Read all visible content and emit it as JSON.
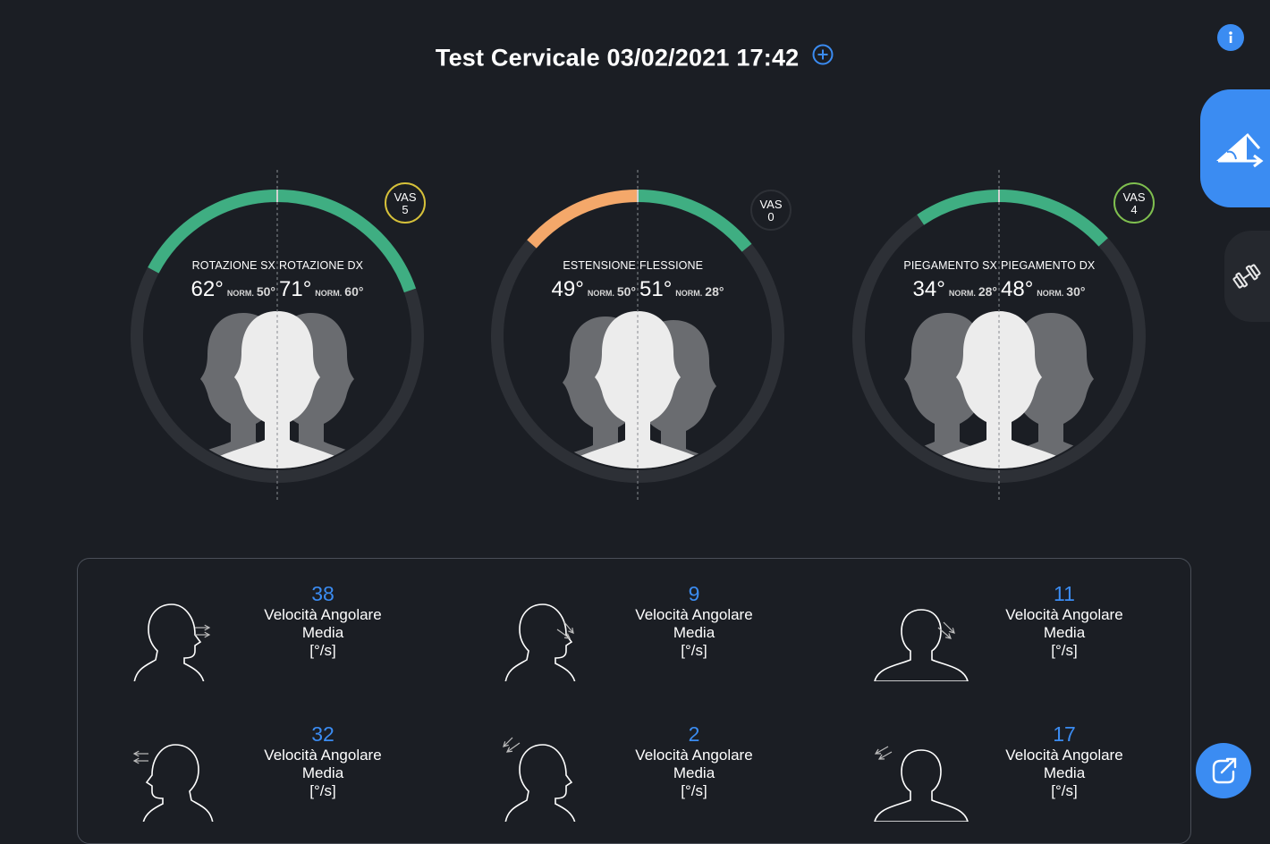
{
  "header": {
    "title": "Test Cervicale 03/02/2021 17:42"
  },
  "colors": {
    "accent": "#3b8cf2",
    "good": "#3fae82",
    "warn": "#f4a86a",
    "track": "#2d3036",
    "background": "#1b1e24"
  },
  "gauges": [
    {
      "left_label": "ROTAZIONE SX",
      "right_label": "ROTAZIONE DX",
      "left_value": "62°",
      "left_norm_key": "NORM.",
      "left_norm": "50°",
      "right_value": "71°",
      "right_norm_key": "NORM.",
      "right_norm": "60°",
      "vas_label": "VAS",
      "vas_value": "5",
      "vas_color": "#d6c13a",
      "left_color": "#3fae82",
      "right_color": "#3fae82",
      "left_deg": 62,
      "right_deg": 71
    },
    {
      "left_label": "ESTENSIONE",
      "right_label": "FLESSIONE",
      "left_value": "49°",
      "left_norm_key": "NORM.",
      "left_norm": "50°",
      "right_value": "51°",
      "right_norm_key": "NORM.",
      "right_norm": "28°",
      "vas_label": "VAS",
      "vas_value": "0",
      "vas_color": "#2d3036",
      "left_color": "#f4a86a",
      "right_color": "#3fae82",
      "left_deg": 49,
      "right_deg": 51
    },
    {
      "left_label": "PIEGAMENTO SX",
      "right_label": "PIEGAMENTO DX",
      "left_value": "34°",
      "left_norm_key": "NORM.",
      "left_norm": "28°",
      "right_value": "48°",
      "right_norm_key": "NORM.",
      "right_norm": "30°",
      "vas_label": "VAS",
      "vas_value": "4",
      "vas_color": "#7fbf4f",
      "left_color": "#3fae82",
      "right_color": "#3fae82",
      "left_deg": 34,
      "right_deg": 48
    }
  ],
  "metrics": [
    {
      "value": "38",
      "line1": "Velocità Angolare",
      "line2": "Media",
      "unit": "[°/s]",
      "icon": "head-rotation-right-icon"
    },
    {
      "value": "9",
      "line1": "Velocità Angolare",
      "line2": "Media",
      "unit": "[°/s]",
      "icon": "head-flexion-icon"
    },
    {
      "value": "11",
      "line1": "Velocità Angolare",
      "line2": "Media",
      "unit": "[°/s]",
      "icon": "head-bend-right-icon"
    },
    {
      "value": "32",
      "line1": "Velocità Angolare",
      "line2": "Media",
      "unit": "[°/s]",
      "icon": "head-rotation-left-icon"
    },
    {
      "value": "2",
      "line1": "Velocità Angolare",
      "line2": "Media",
      "unit": "[°/s]",
      "icon": "head-extension-icon"
    },
    {
      "value": "17",
      "line1": "Velocità Angolare",
      "line2": "Media",
      "unit": "[°/s]",
      "icon": "head-bend-left-icon"
    }
  ],
  "icons": {
    "info": "info-icon",
    "add": "plus-circle-icon",
    "side_active": "angle-measure-icon",
    "side_other": "dumbbell-icon",
    "fab": "external-link-icon"
  }
}
